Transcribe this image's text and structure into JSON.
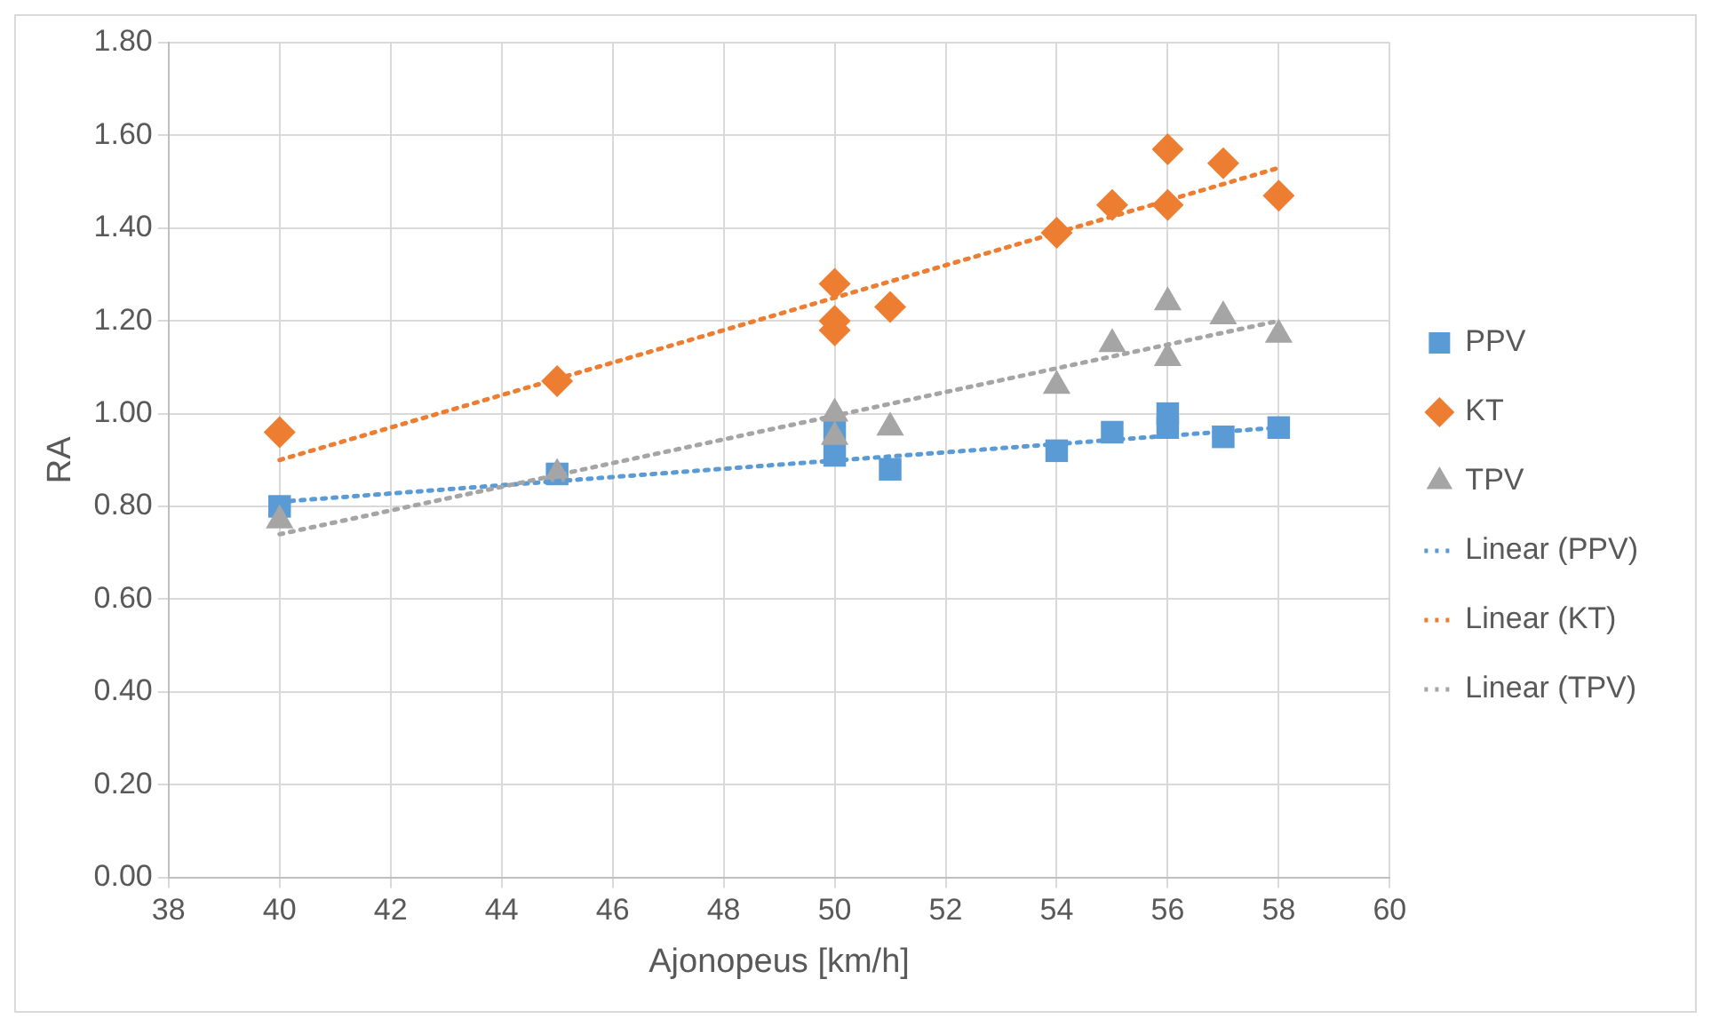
{
  "chart_data": {
    "type": "scatter",
    "xlabel": "Ajonopeus [km/h]",
    "ylabel": "RA",
    "xlim": [
      38,
      60
    ],
    "xticks": [
      38,
      40,
      42,
      44,
      46,
      48,
      50,
      52,
      54,
      56,
      58,
      60
    ],
    "ylim": [
      0,
      1.8
    ],
    "yticks": [
      {
        "value": 0,
        "label": "0.00"
      },
      {
        "value": 0.2,
        "label": "0.20"
      },
      {
        "value": 0.4,
        "label": "0.40"
      },
      {
        "value": 0.6,
        "label": "0.60"
      },
      {
        "value": 0.8,
        "label": "0.80"
      },
      {
        "value": 1,
        "label": "1.00"
      },
      {
        "value": 1.2,
        "label": "1.20"
      },
      {
        "value": 1.4,
        "label": "1.40"
      },
      {
        "value": 1.6,
        "label": "1.60"
      },
      {
        "value": 1.8,
        "label": "1.80"
      }
    ],
    "grid": true,
    "legend": "right",
    "series": [
      {
        "name": "PPV",
        "type": "scatter",
        "marker": "square",
        "color": "#5b9bd5",
        "x": [
          40,
          45,
          50,
          50,
          51,
          54,
          55,
          56,
          56,
          57,
          58
        ],
        "values": [
          0.8,
          0.87,
          0.96,
          0.91,
          0.88,
          0.92,
          0.96,
          1.0,
          0.97,
          0.95,
          0.97
        ]
      },
      {
        "name": "KT",
        "type": "scatter",
        "marker": "diamond",
        "color": "#ed7d31",
        "x": [
          40,
          45,
          50,
          50,
          50,
          51,
          54,
          55,
          56,
          56,
          57,
          58
        ],
        "values": [
          0.96,
          1.07,
          1.28,
          1.2,
          1.18,
          1.23,
          1.39,
          1.45,
          1.57,
          1.45,
          1.54,
          1.47
        ]
      },
      {
        "name": "TPV",
        "type": "scatter",
        "marker": "triangle",
        "color": "#a5a5a5",
        "x": [
          40,
          45,
          50,
          50,
          51,
          54,
          55,
          56,
          56,
          57,
          58
        ],
        "values": [
          0.77,
          0.87,
          1.0,
          0.95,
          0.97,
          1.06,
          1.15,
          1.24,
          1.12,
          1.21,
          1.17
        ]
      },
      {
        "name": "Linear (PPV)",
        "type": "line",
        "marker": "none",
        "line_style": "dotted",
        "color": "#5b9bd5",
        "x": [
          40,
          58
        ],
        "values": [
          0.81,
          0.97
        ]
      },
      {
        "name": "Linear (KT)",
        "type": "line",
        "marker": "none",
        "line_style": "dotted",
        "color": "#ed7d31",
        "x": [
          40,
          58
        ],
        "values": [
          0.9,
          1.53
        ]
      },
      {
        "name": "Linear (TPV)",
        "type": "line",
        "marker": "none",
        "line_style": "dotted",
        "color": "#a5a5a5",
        "x": [
          40,
          58
        ],
        "values": [
          0.74,
          1.2
        ]
      }
    ]
  }
}
